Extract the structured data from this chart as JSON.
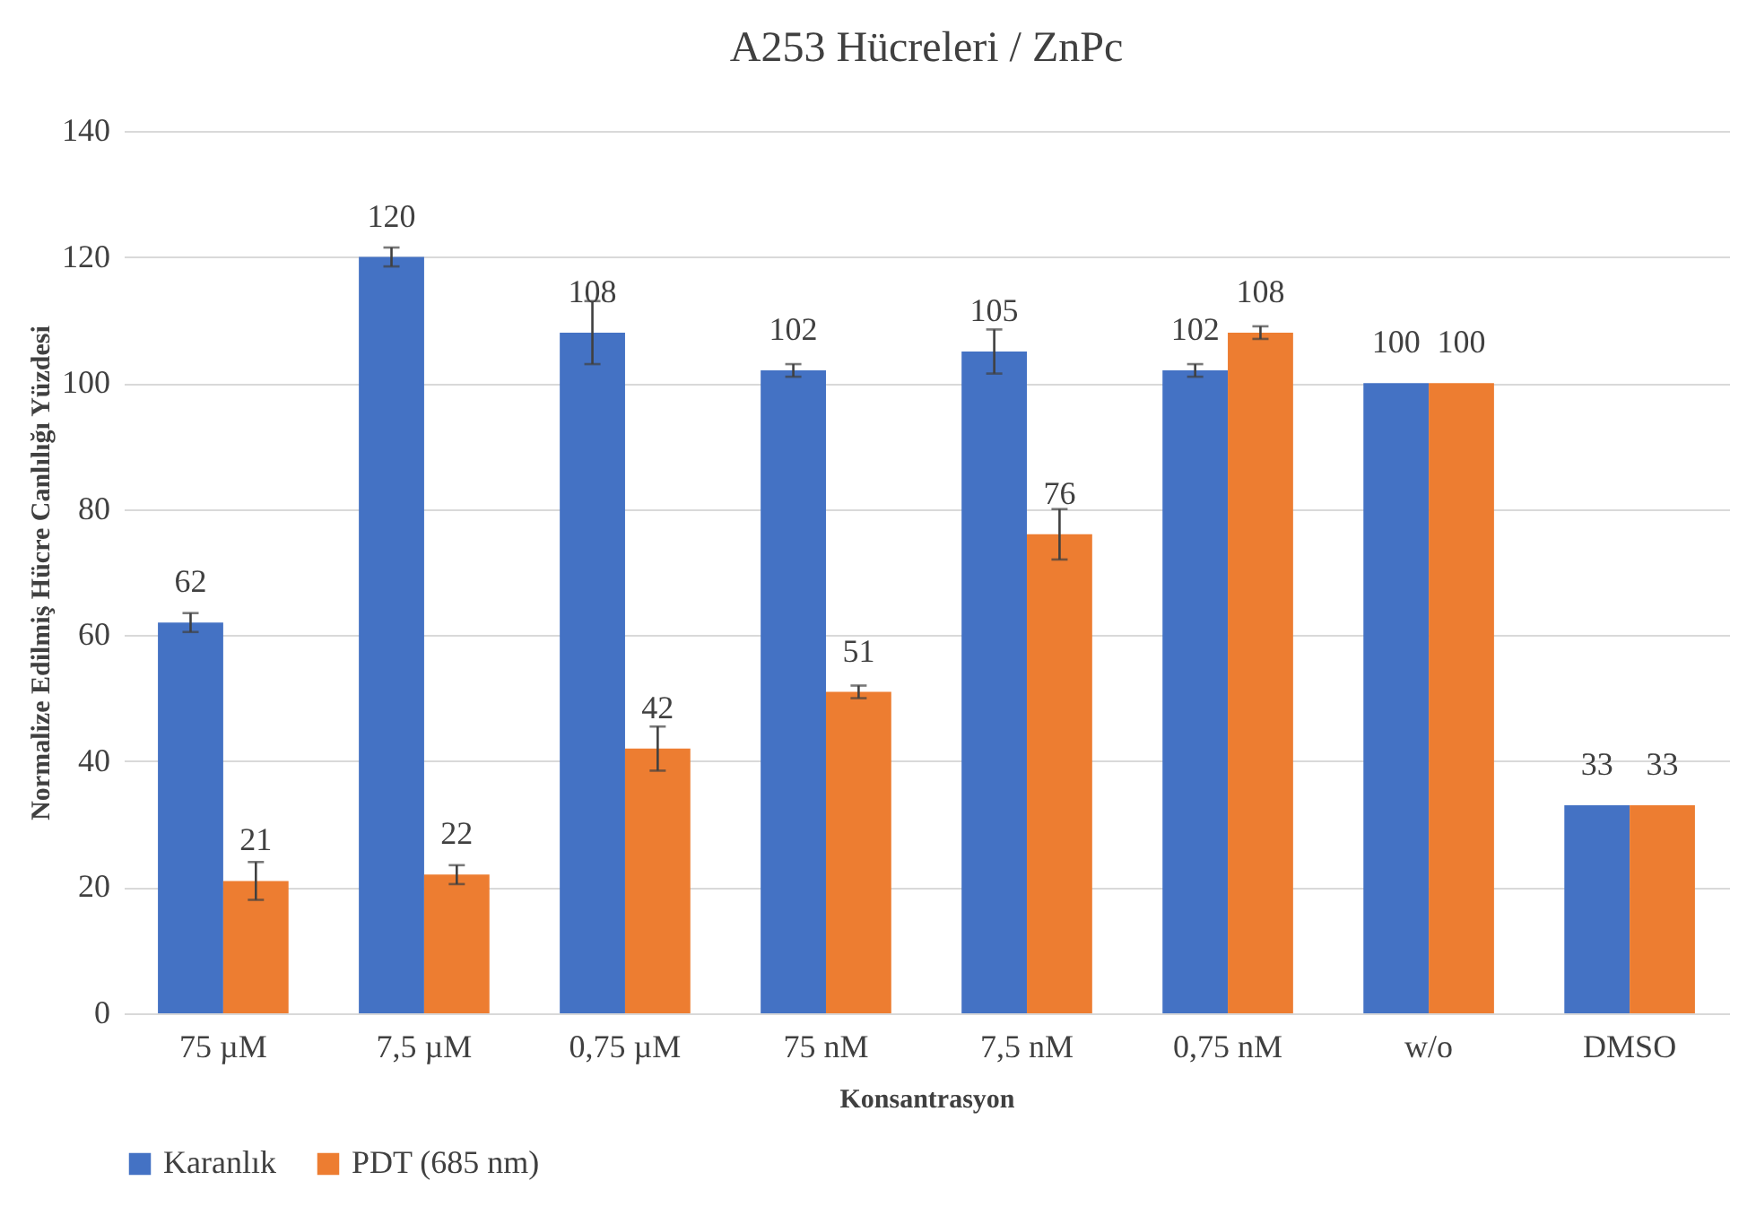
{
  "chart_data": {
    "type": "bar",
    "title": "A253 Hücreleri / ZnPc",
    "xlabel": "Konsantrasyon",
    "ylabel": "Normalize Edilmiş Hücre Canlılığı Yüzdesi",
    "categories": [
      "75 µM",
      "7,5 µM",
      "0,75 µM",
      "75 nM",
      "7,5 nM",
      "0,75 nM",
      "w/o",
      "DMSO"
    ],
    "series": [
      {
        "name": "Karanlık",
        "color": "#4472c4",
        "values": [
          62,
          120,
          108,
          102,
          105,
          102,
          100,
          33
        ],
        "errors": [
          1.5,
          1.5,
          5,
          1,
          3.5,
          1,
          null,
          null
        ]
      },
      {
        "name": "PDT (685 nm)",
        "color": "#ed7d31",
        "values": [
          21,
          22,
          42,
          51,
          76,
          108,
          100,
          33
        ],
        "errors": [
          3,
          1.5,
          3.5,
          1,
          4,
          1,
          null,
          null
        ]
      }
    ],
    "ylim": [
      0,
      140
    ],
    "yticks": [
      0,
      20,
      40,
      60,
      80,
      100,
      120,
      140
    ],
    "grid": "y",
    "legend": "bottom",
    "data_labels": true
  }
}
